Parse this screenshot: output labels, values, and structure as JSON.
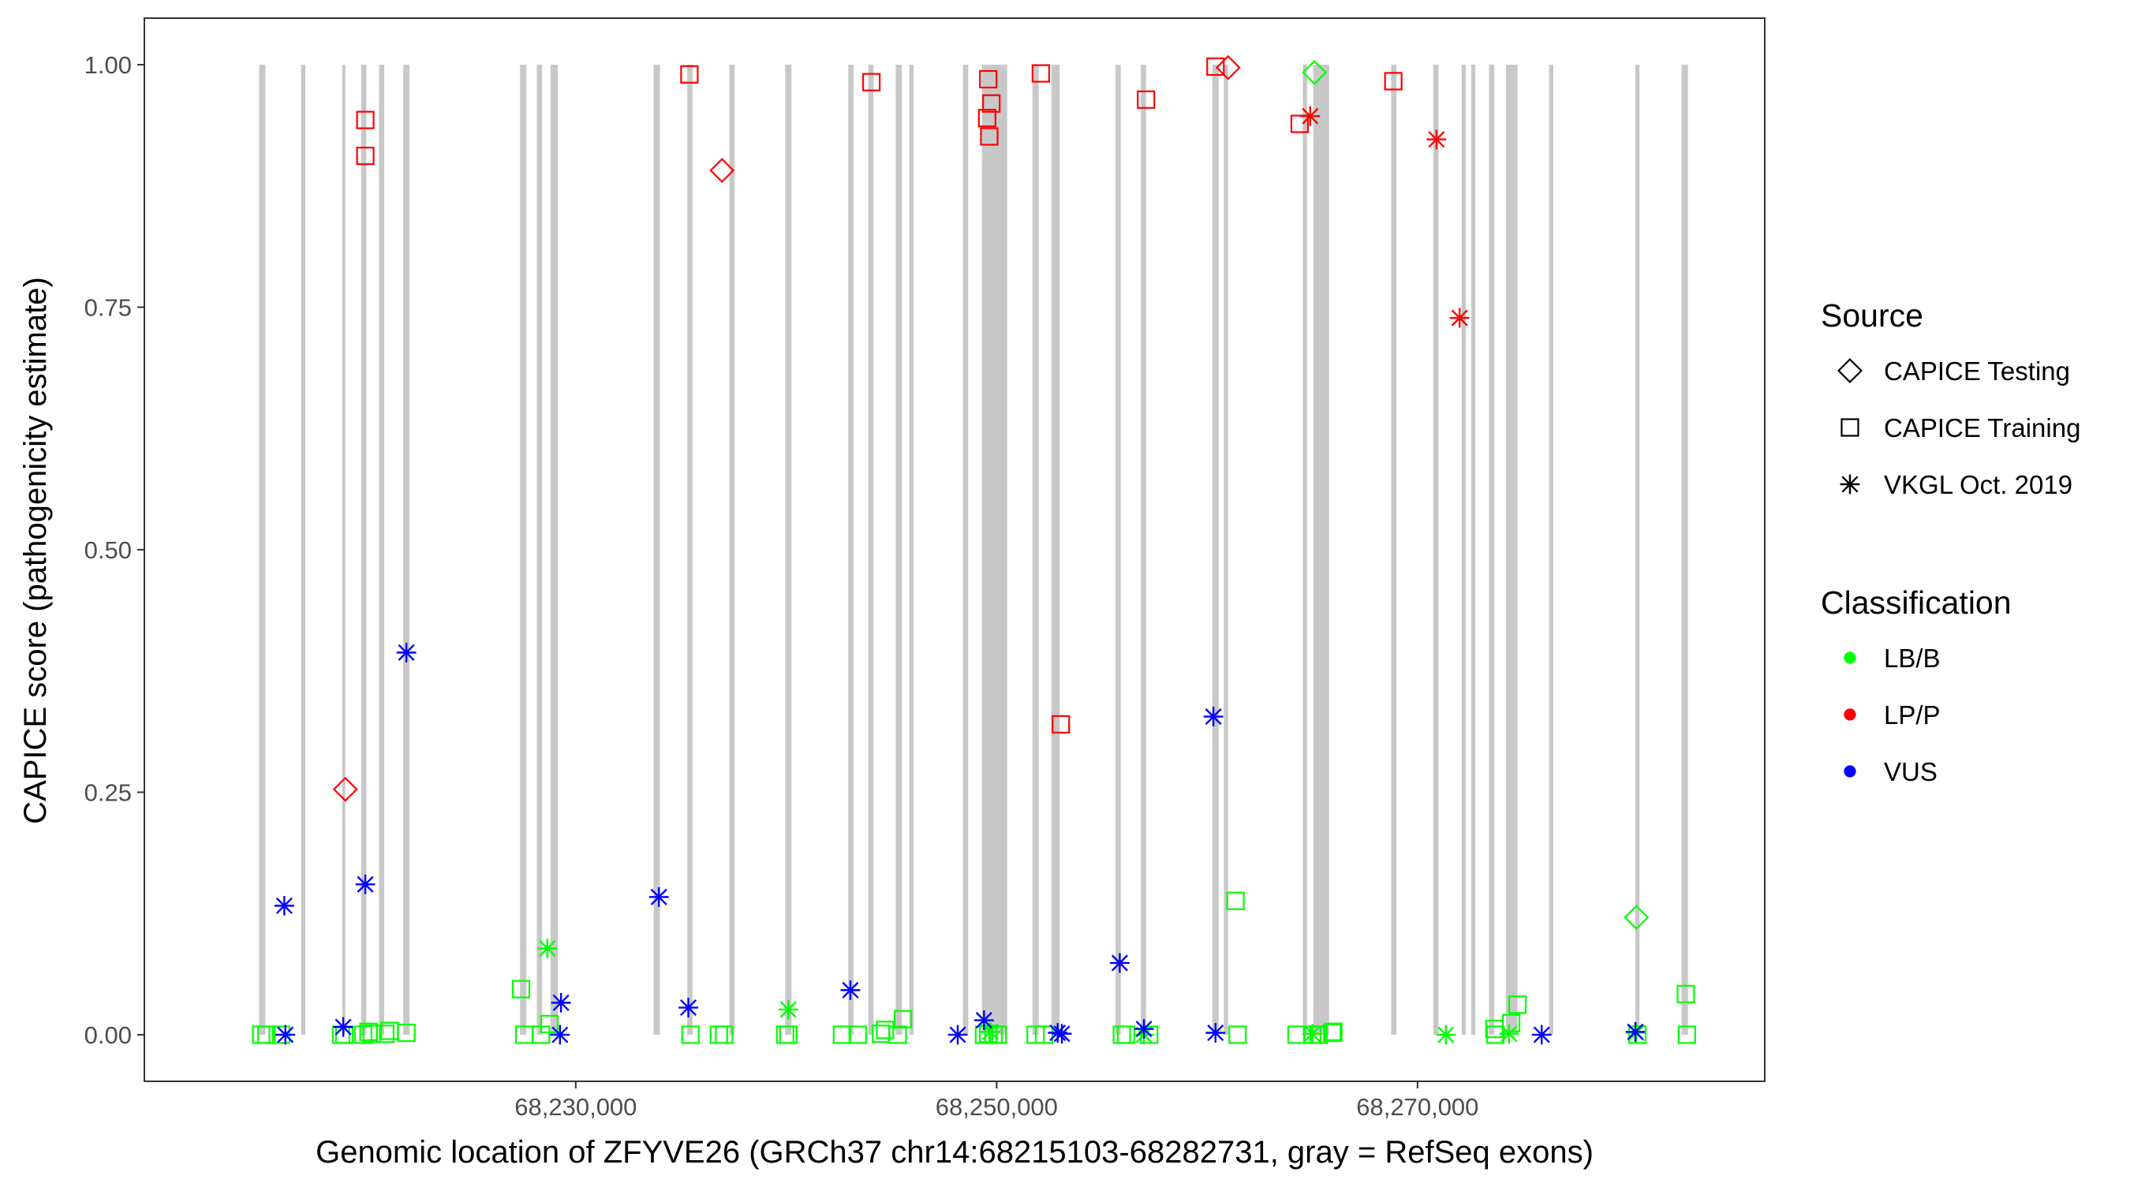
{
  "chart_data": {
    "type": "scatter",
    "title": "",
    "xlabel": "Genomic location of ZFYVE26 (GRCh37 chr14:68215103-68282731, gray = RefSeq exons)",
    "ylabel": "CAPICE score (pathogenicity estimate)",
    "xlim": [
      68209500,
      68286500
    ],
    "ylim": [
      -0.048,
      1.048
    ],
    "x_ticks": [
      68230000,
      68250000,
      68270000
    ],
    "x_tick_labels": [
      "68,230,000",
      "68,250,000",
      "68,270,000"
    ],
    "y_ticks": [
      0,
      0.25,
      0.5,
      0.75,
      1.0
    ],
    "y_tick_labels": [
      "0.00",
      "0.25",
      "0.50",
      "0.75",
      "1.00"
    ],
    "grid": false,
    "legend_position": "right",
    "exons": [
      [
        68214950,
        68215250
      ],
      [
        68216950,
        68217150
      ],
      [
        68218900,
        68219050
      ],
      [
        68219800,
        68220050
      ],
      [
        68220650,
        68220900
      ],
      [
        68221800,
        68222100
      ],
      [
        68227350,
        68227650
      ],
      [
        68228150,
        68228400
      ],
      [
        68228800,
        68229150
      ],
      [
        68233700,
        68234000
      ],
      [
        68235300,
        68235550
      ],
      [
        68237300,
        68237550
      ],
      [
        68239950,
        68240250
      ],
      [
        68242950,
        68243200
      ],
      [
        68243900,
        68244150
      ],
      [
        68245200,
        68245500
      ],
      [
        68245850,
        68246050
      ],
      [
        68248400,
        68248650
      ],
      [
        68249300,
        68250500
      ],
      [
        68251700,
        68252000
      ],
      [
        68252600,
        68253000
      ],
      [
        68255650,
        68255900
      ],
      [
        68256850,
        68257100
      ],
      [
        68260250,
        68260550
      ],
      [
        68260800,
        68261000
      ],
      [
        68264550,
        68264750
      ],
      [
        68265050,
        68265800
      ],
      [
        68268750,
        68269000
      ],
      [
        68270750,
        68271000
      ],
      [
        68272100,
        68272300
      ],
      [
        68272550,
        68272750
      ],
      [
        68273400,
        68273650
      ],
      [
        68274200,
        68274750
      ],
      [
        68276250,
        68276450
      ],
      [
        68280350,
        68280550
      ],
      [
        68282550,
        68282850
      ]
    ],
    "series": [
      {
        "source": "CAPICE Testing",
        "classification": "LB/B",
        "points": [
          {
            "x": 68265100,
            "y": 0.992
          },
          {
            "x": 68280400,
            "y": 0.121
          }
        ]
      },
      {
        "source": "CAPICE Testing",
        "classification": "LP/P",
        "points": [
          {
            "x": 68219050,
            "y": 0.253
          },
          {
            "x": 68236950,
            "y": 0.891
          },
          {
            "x": 68261000,
            "y": 0.997
          }
        ]
      },
      {
        "source": "CAPICE Training",
        "classification": "LB/B",
        "points": [
          {
            "x": 68215050,
            "y": 0
          },
          {
            "x": 68215300,
            "y": 0
          },
          {
            "x": 68216000,
            "y": 0
          },
          {
            "x": 68218850,
            "y": 0
          },
          {
            "x": 68219000,
            "y": 0
          },
          {
            "x": 68219900,
            "y": 0
          },
          {
            "x": 68220150,
            "y": 0.003
          },
          {
            "x": 68220300,
            "y": 0.001
          },
          {
            "x": 68220950,
            "y": 0.001
          },
          {
            "x": 68221150,
            "y": 0.004
          },
          {
            "x": 68221950,
            "y": 0.002
          },
          {
            "x": 68227400,
            "y": 0.047
          },
          {
            "x": 68227550,
            "y": 0
          },
          {
            "x": 68228350,
            "y": 0
          },
          {
            "x": 68228750,
            "y": 0.011
          },
          {
            "x": 68235450,
            "y": 0
          },
          {
            "x": 68236800,
            "y": 0
          },
          {
            "x": 68237050,
            "y": 0
          },
          {
            "x": 68239950,
            "y": 0
          },
          {
            "x": 68240100,
            "y": 0
          },
          {
            "x": 68242650,
            "y": 0
          },
          {
            "x": 68243400,
            "y": 0
          },
          {
            "x": 68244500,
            "y": 0.001
          },
          {
            "x": 68244700,
            "y": 0.005
          },
          {
            "x": 68245300,
            "y": 0
          },
          {
            "x": 68245550,
            "y": 0.016
          },
          {
            "x": 68249400,
            "y": 0
          },
          {
            "x": 68249600,
            "y": 0.001
          },
          {
            "x": 68249850,
            "y": 0
          },
          {
            "x": 68250050,
            "y": 0
          },
          {
            "x": 68251850,
            "y": 0
          },
          {
            "x": 68252250,
            "y": 0
          },
          {
            "x": 68255950,
            "y": 0
          },
          {
            "x": 68256150,
            "y": 0
          },
          {
            "x": 68257250,
            "y": 0
          },
          {
            "x": 68261350,
            "y": 0.138
          },
          {
            "x": 68261450,
            "y": 0
          },
          {
            "x": 68264250,
            "y": 0
          },
          {
            "x": 68265000,
            "y": 0
          },
          {
            "x": 68265300,
            "y": 0
          },
          {
            "x": 68265950,
            "y": 0.002
          },
          {
            "x": 68266000,
            "y": 0.003
          },
          {
            "x": 68274450,
            "y": 0.012
          },
          {
            "x": 68274750,
            "y": 0.031
          },
          {
            "x": 68273650,
            "y": 0.006
          },
          {
            "x": 68273700,
            "y": 0
          },
          {
            "x": 68280450,
            "y": 0
          },
          {
            "x": 68282750,
            "y": 0.042
          },
          {
            "x": 68282800,
            "y": 0
          }
        ]
      },
      {
        "source": "CAPICE Training",
        "classification": "LP/P",
        "points": [
          {
            "x": 68220000,
            "y": 0.943
          },
          {
            "x": 68220000,
            "y": 0.906
          },
          {
            "x": 68235400,
            "y": 0.99
          },
          {
            "x": 68244050,
            "y": 0.982
          },
          {
            "x": 68249600,
            "y": 0.985
          },
          {
            "x": 68249550,
            "y": 0.945
          },
          {
            "x": 68249750,
            "y": 0.96
          },
          {
            "x": 68249650,
            "y": 0.926
          },
          {
            "x": 68252100,
            "y": 0.991
          },
          {
            "x": 68253050,
            "y": 0.32
          },
          {
            "x": 68257100,
            "y": 0.964
          },
          {
            "x": 68260400,
            "y": 0.998
          },
          {
            "x": 68264400,
            "y": 0.939
          },
          {
            "x": 68268850,
            "y": 0.983
          }
        ]
      },
      {
        "source": "VKGL Oct. 2019",
        "classification": "LB/B",
        "points": [
          {
            "x": 68228650,
            "y": 0.089
          },
          {
            "x": 68240100,
            "y": 0.026
          },
          {
            "x": 68249700,
            "y": 0.003
          },
          {
            "x": 68257000,
            "y": 0
          },
          {
            "x": 68265000,
            "y": 0.001
          },
          {
            "x": 68271350,
            "y": 0
          },
          {
            "x": 68274350,
            "y": 0.001
          },
          {
            "x": 68280400,
            "y": 0.002
          }
        ]
      },
      {
        "source": "VKGL Oct. 2019",
        "classification": "LP/P",
        "points": [
          {
            "x": 68264900,
            "y": 0.947
          },
          {
            "x": 68270900,
            "y": 0.923
          },
          {
            "x": 68272000,
            "y": 0.739
          }
        ]
      },
      {
        "source": "VKGL Oct. 2019",
        "classification": "VUS",
        "points": [
          {
            "x": 68216150,
            "y": 0.133
          },
          {
            "x": 68216200,
            "y": 0
          },
          {
            "x": 68218950,
            "y": 0.008
          },
          {
            "x": 68220000,
            "y": 0.155
          },
          {
            "x": 68221950,
            "y": 0.394
          },
          {
            "x": 68229300,
            "y": 0.033
          },
          {
            "x": 68229250,
            "y": 0
          },
          {
            "x": 68233950,
            "y": 0.142
          },
          {
            "x": 68235350,
            "y": 0.028
          },
          {
            "x": 68243050,
            "y": 0.046
          },
          {
            "x": 68248150,
            "y": 0
          },
          {
            "x": 68249400,
            "y": 0.015
          },
          {
            "x": 68252900,
            "y": 0.002
          },
          {
            "x": 68253100,
            "y": 0.001
          },
          {
            "x": 68255850,
            "y": 0.074
          },
          {
            "x": 68257000,
            "y": 0.006
          },
          {
            "x": 68260300,
            "y": 0.328
          },
          {
            "x": 68260400,
            "y": 0.002
          },
          {
            "x": 68275900,
            "y": 0
          },
          {
            "x": 68280350,
            "y": 0.003
          }
        ]
      }
    ],
    "colors": {
      "LB/B": "#00ff00",
      "LP/P": "#ff0000",
      "VUS": "#0000ff",
      "exon": "#c8c8c8",
      "axis": "#333333"
    },
    "legend": {
      "source_title": "Source",
      "source_items": [
        {
          "label": "CAPICE Testing",
          "shape": "diamond"
        },
        {
          "label": "CAPICE Training",
          "shape": "square"
        },
        {
          "label": "VKGL Oct. 2019",
          "shape": "asterisk"
        }
      ],
      "class_title": "Classification",
      "class_items": [
        {
          "label": "LB/B",
          "color": "#00ff00"
        },
        {
          "label": "LP/P",
          "color": "#ff0000"
        },
        {
          "label": "VUS",
          "color": "#0000ff"
        }
      ]
    }
  }
}
